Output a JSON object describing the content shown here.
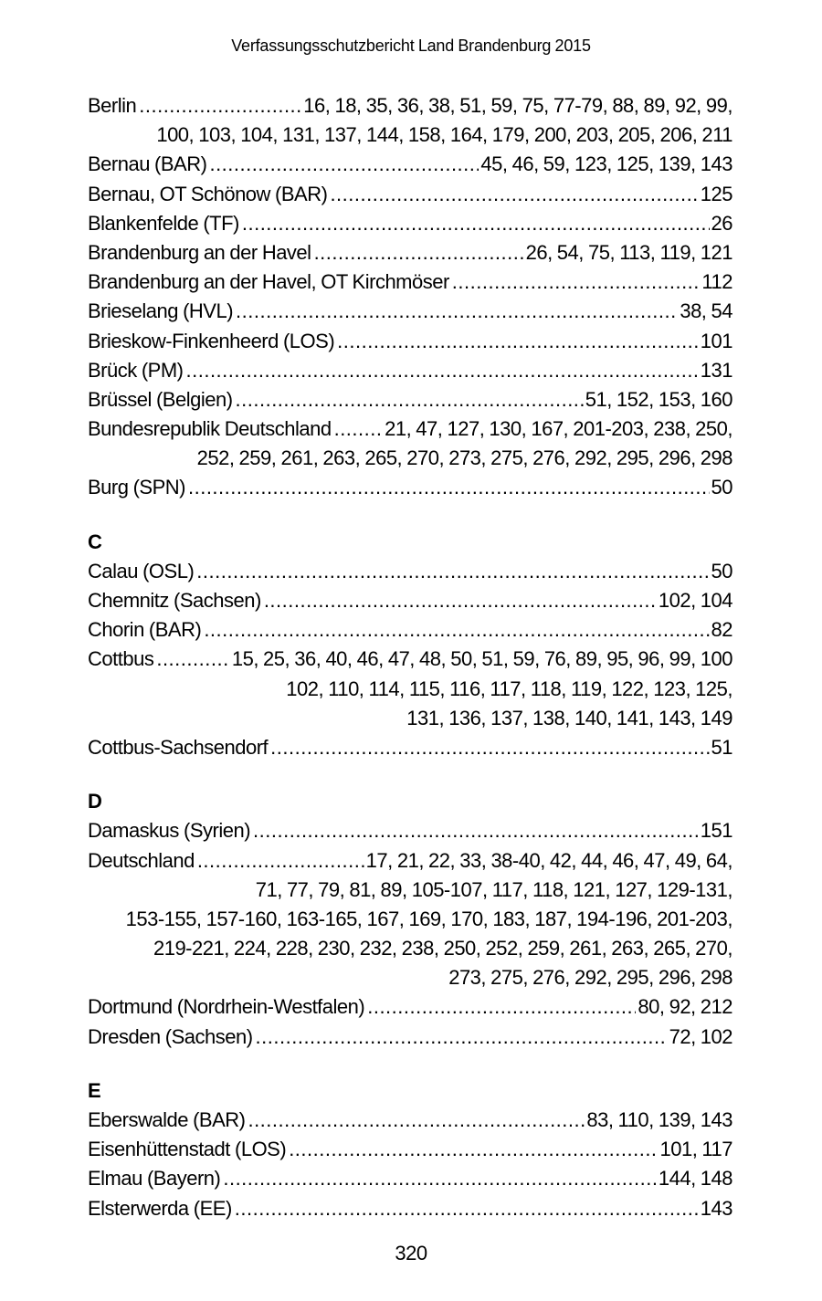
{
  "page": {
    "header_title": "Verfassungsschutzbericht Land Brandenburg 2015",
    "page_number": "320"
  },
  "index": {
    "sections": [
      {
        "letter": "",
        "entries": [
          {
            "term": "Berlin",
            "pages": "16, 18, 35, 36, 38, 51, 59, 75, 77-79, 88, 89, 92, 99,",
            "continuation": [
              "100, 103, 104, 131, 137, 144, 158, 164, 179, 200, 203, 205, 206, 211"
            ]
          },
          {
            "term": "Bernau (BAR)",
            "pages": "45, 46, 59, 123, 125, 139, 143",
            "continuation": []
          },
          {
            "term": "Bernau, OT Schönow (BAR)",
            "pages": "125",
            "continuation": []
          },
          {
            "term": "Blankenfelde (TF)",
            "pages": "26",
            "continuation": []
          },
          {
            "term": "Brandenburg an der Havel",
            "pages": "26, 54, 75, 113, 119, 121",
            "continuation": []
          },
          {
            "term": "Brandenburg an der Havel, OT Kirchmöser",
            "pages": "112",
            "continuation": []
          },
          {
            "term": "Brieselang (HVL)",
            "pages": "38, 54",
            "continuation": []
          },
          {
            "term": "Brieskow-Finkenheerd (LOS)",
            "pages": "101",
            "continuation": []
          },
          {
            "term": "Brück (PM)",
            "pages": "131",
            "continuation": []
          },
          {
            "term": "Brüssel (Belgien)",
            "pages": "51, 152, 153, 160",
            "continuation": []
          },
          {
            "term": "Bundesrepublik Deutschland",
            "pages": "21, 47, 127, 130, 167, 201-203, 238, 250,",
            "continuation": [
              "252, 259, 261, 263, 265, 270, 273, 275, 276, 292, 295, 296, 298"
            ]
          },
          {
            "term": "Burg (SPN)",
            "pages": "50",
            "continuation": []
          }
        ]
      },
      {
        "letter": "C",
        "entries": [
          {
            "term": "Calau (OSL)",
            "pages": "50",
            "continuation": []
          },
          {
            "term": "Chemnitz (Sachsen)",
            "pages": "102, 104",
            "continuation": []
          },
          {
            "term": "Chorin (BAR)",
            "pages": "82",
            "continuation": []
          },
          {
            "term": "Cottbus",
            "pages": "15, 25, 36, 40, 46, 47, 48, 50, 51, 59, 76, 89, 95, 96, 99, 100",
            "continuation": [
              "102,  110, 114, 115, 116, 117, 118, 119, 122, 123, 125,",
              "131, 136, 137, 138, 140, 141, 143, 149"
            ]
          },
          {
            "term": "Cottbus-Sachsendorf",
            "pages": "51",
            "continuation": []
          }
        ]
      },
      {
        "letter": "D",
        "entries": [
          {
            "term": "Damaskus (Syrien)",
            "pages": "151",
            "continuation": []
          },
          {
            "term": "Deutschland",
            "pages": "17, 21, 22, 33, 38-40, 42, 44, 46, 47, 49, 64,",
            "continuation": [
              "71,  77, 79, 81, 89, 105-107, 117, 118, 121, 127, 129-131,",
              "153-155, 157-160, 163-165, 167, 169, 170, 183, 187, 194-196, 201-203,",
              "219-221, 224, 228, 230, 232, 238, 250, 252, 259, 261, 263, 265, 270,",
              "273, 275, 276, 292, 295, 296, 298"
            ]
          },
          {
            "term": "Dortmund (Nordrhein-Westfalen)",
            "pages": "80, 92, 212",
            "continuation": []
          },
          {
            "term": "Dresden (Sachsen)",
            "pages": "72, 102",
            "continuation": []
          }
        ]
      },
      {
        "letter": "E",
        "entries": [
          {
            "term": "Eberswalde (BAR)",
            "pages": "83, 110, 139, 143",
            "continuation": []
          },
          {
            "term": "Eisenhüttenstadt (LOS)",
            "pages": "101, 117",
            "continuation": []
          },
          {
            "term": "Elmau (Bayern)",
            "pages": "144, 148",
            "continuation": []
          },
          {
            "term": "Elsterwerda (EE)",
            "pages": "143",
            "continuation": []
          }
        ]
      }
    ]
  }
}
